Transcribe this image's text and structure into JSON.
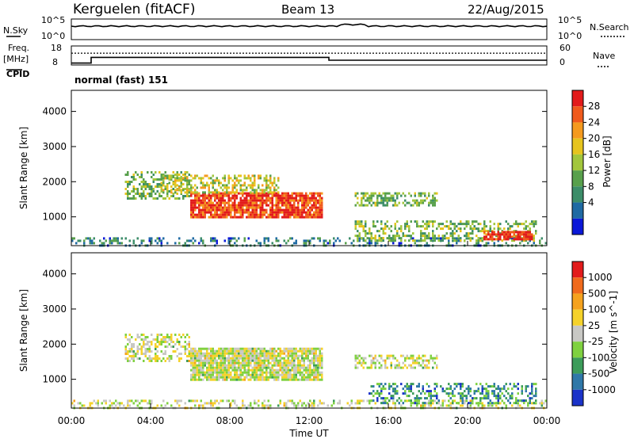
{
  "header": {
    "station": "Kerguelen (fitACF)",
    "beam": "Beam 13",
    "date": "22/Aug/2015"
  },
  "top_panels": {
    "nsky_label": "N.Sky",
    "nsky_ticks": [
      "10^5",
      "10^0"
    ],
    "nsearch_label": "N.Search",
    "nsearch_ticks": [
      "10^5",
      "10^0"
    ],
    "freq_label_1": "Freq.",
    "freq_label_2": "[MHz]",
    "freq_ticks": [
      "18",
      "8"
    ],
    "nave_label": "Nave",
    "nave_ticks": [
      "60",
      "0"
    ],
    "cpid_label": "CPID",
    "cpid_value": "normal (fast) 151",
    "freq_steps_mhz": [
      {
        "from_h": 0.0,
        "to_h": 1.0,
        "value": 9.0
      },
      {
        "from_h": 1.0,
        "to_h": 13.0,
        "value": 12.0
      },
      {
        "from_h": 13.0,
        "to_h": 24.0,
        "value": 10.5
      }
    ],
    "nave_level": 0.62
  },
  "chart_data": [
    {
      "type": "heatmap",
      "title": "Power",
      "ylabel": "Slant Range [km]",
      "y_ticks": [
        "1000",
        "2000",
        "3000",
        "4000"
      ],
      "y_tick_values": [
        1000,
        2000,
        3000,
        4000
      ],
      "ylim": [
        180,
        4600
      ],
      "colorbar_label": "Power [dB]",
      "colorbar_ticks": [
        "28",
        "24",
        "20",
        "16",
        "12",
        "8",
        "4"
      ],
      "colorbar_colors": [
        "#0b18d8",
        "#1f6aa3",
        "#3c8d69",
        "#58a04c",
        "#a2c63c",
        "#e6c41e",
        "#f59a1e",
        "#f05a1c",
        "#e21b1b"
      ],
      "xlim_hours": [
        0,
        24
      ],
      "echo_regions": [
        {
          "t0": 0.0,
          "t1": 24.0,
          "r0": 190,
          "r1": 420,
          "level": 0.25,
          "density": 0.35
        },
        {
          "t0": 2.7,
          "t1": 6.0,
          "r0": 1500,
          "r1": 2300,
          "level": 0.45,
          "density": 0.5
        },
        {
          "t0": 6.0,
          "t1": 12.7,
          "r0": 1000,
          "r1": 1700,
          "level": 0.88,
          "density": 0.85
        },
        {
          "t0": 4.5,
          "t1": 10.5,
          "r0": 1700,
          "r1": 2200,
          "level": 0.55,
          "density": 0.5
        },
        {
          "t0": 14.3,
          "t1": 18.5,
          "r0": 1300,
          "r1": 1700,
          "level": 0.4,
          "density": 0.55
        },
        {
          "t0": 14.3,
          "t1": 23.5,
          "r0": 300,
          "r1": 900,
          "level": 0.45,
          "density": 0.45
        },
        {
          "t0": 20.8,
          "t1": 23.3,
          "r0": 330,
          "r1": 600,
          "level": 0.95,
          "density": 0.8
        }
      ]
    },
    {
      "type": "heatmap",
      "title": "Velocity",
      "ylabel": "Slant Range [km]",
      "y_ticks": [
        "1000",
        "2000",
        "3000",
        "4000"
      ],
      "y_tick_values": [
        1000,
        2000,
        3000,
        4000
      ],
      "ylim": [
        180,
        4600
      ],
      "colorbar_label": "Velocity [m s^-1]",
      "colorbar_ticks": [
        "1000",
        "500",
        "100",
        "25",
        "-25",
        "-100",
        "-500",
        "-1000"
      ],
      "colorbar_colors": [
        "#1b33c9",
        "#2f78a8",
        "#3c9c5a",
        "#7fd140",
        "#c8c8c4",
        "#f5d22a",
        "#f5a21e",
        "#f06a1c",
        "#e21b1b"
      ],
      "xlabel": "Time UT",
      "x_ticks": [
        "00:00",
        "04:00",
        "08:00",
        "12:00",
        "16:00",
        "20:00",
        "00:00"
      ],
      "xlim_hours": [
        0,
        24
      ],
      "echo_regions": [
        {
          "t0": 0.0,
          "t1": 24.0,
          "r0": 190,
          "r1": 420,
          "level": 0.5,
          "density": 0.35
        },
        {
          "t0": 2.7,
          "t1": 6.0,
          "r0": 1500,
          "r1": 2300,
          "level": 0.5,
          "density": 0.5
        },
        {
          "t0": 6.0,
          "t1": 12.7,
          "r0": 1000,
          "r1": 1900,
          "level": 0.5,
          "density": 0.9
        },
        {
          "t0": 14.3,
          "t1": 18.5,
          "r0": 1300,
          "r1": 1700,
          "level": 0.5,
          "density": 0.55
        },
        {
          "t0": 15.0,
          "t1": 23.5,
          "r0": 300,
          "r1": 900,
          "level": 0.25,
          "density": 0.4
        }
      ]
    }
  ]
}
